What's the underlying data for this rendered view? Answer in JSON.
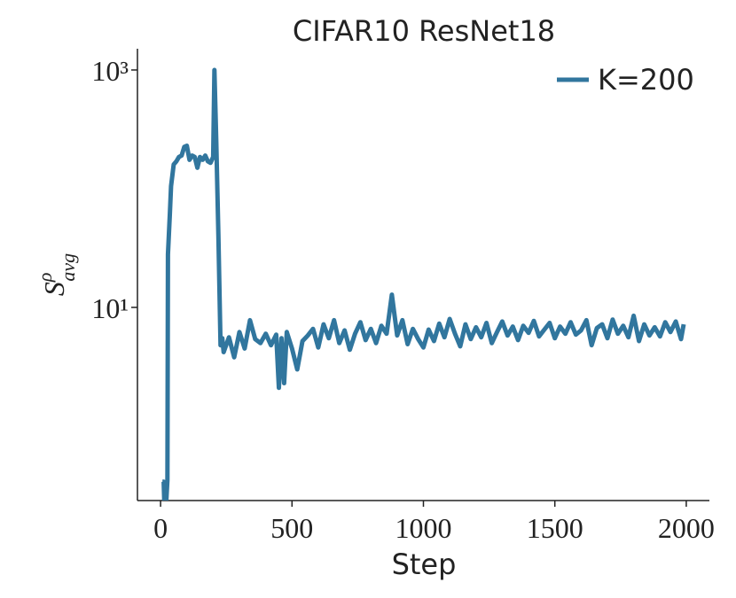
{
  "chart_data": {
    "type": "line",
    "title": "CIFAR10 ResNet18",
    "xlabel": "Step",
    "ylabel": {
      "base": "S",
      "sup": "ρ",
      "sub": "avg"
    },
    "log_y": true,
    "legend": "upper right",
    "grid": false,
    "xlim": [
      -88,
      2088
    ],
    "xticks": [
      0,
      500,
      1000,
      1500,
      2000
    ],
    "ylim": [
      0.236,
      1510
    ],
    "yticks": [
      {
        "value": 10,
        "label": "10¹"
      },
      {
        "value": 1000,
        "label": "10³"
      }
    ],
    "series": [
      {
        "name": "K=200",
        "color": "#31769e",
        "x": [
          7,
          12,
          14,
          22,
          26,
          28,
          35,
          40,
          50,
          60,
          70,
          80,
          90,
          100,
          110,
          120,
          130,
          140,
          150,
          160,
          170,
          180,
          190,
          200,
          205,
          212,
          220,
          228,
          235,
          240,
          260,
          280,
          300,
          320,
          340,
          360,
          380,
          400,
          420,
          440,
          450,
          460,
          470,
          480,
          500,
          520,
          540,
          560,
          580,
          600,
          620,
          640,
          660,
          680,
          700,
          720,
          740,
          760,
          780,
          800,
          820,
          840,
          860,
          880,
          900,
          920,
          940,
          960,
          980,
          1000,
          1020,
          1040,
          1060,
          1080,
          1100,
          1120,
          1140,
          1160,
          1180,
          1200,
          1220,
          1240,
          1260,
          1280,
          1300,
          1320,
          1340,
          1360,
          1380,
          1400,
          1420,
          1440,
          1460,
          1480,
          1500,
          1520,
          1540,
          1560,
          1580,
          1600,
          1620,
          1640,
          1660,
          1680,
          1700,
          1720,
          1740,
          1760,
          1780,
          1800,
          1820,
          1840,
          1860,
          1880,
          1900,
          1920,
          1940,
          1960,
          1980,
          1990
        ],
        "values": [
          0.34,
          0.34,
          0.24,
          0.24,
          0.35,
          28,
          60,
          105,
          160,
          170,
          185,
          190,
          225,
          230,
          175,
          190,
          185,
          150,
          185,
          175,
          190,
          170,
          165,
          185,
          1000,
          250,
          40,
          4.8,
          5.5,
          4.2,
          5.6,
          3.8,
          6.2,
          4.5,
          7.8,
          5.4,
          5.0,
          6.0,
          4.8,
          5.9,
          2.1,
          5.5,
          2.3,
          6.2,
          4.5,
          3.0,
          5.2,
          5.8,
          6.6,
          4.6,
          7.2,
          5.5,
          7.8,
          5.0,
          6.4,
          4.4,
          6.0,
          7.5,
          5.3,
          6.6,
          5.0,
          7.0,
          6.0,
          12.8,
          5.8,
          7.8,
          4.9,
          6.6,
          5.4,
          4.6,
          6.5,
          5.2,
          7.3,
          5.6,
          8.0,
          6.0,
          4.7,
          7.2,
          5.4,
          6.8,
          5.6,
          7.4,
          5.0,
          6.2,
          7.6,
          5.8,
          6.9,
          5.3,
          7.0,
          6.1,
          7.7,
          5.7,
          6.5,
          7.4,
          5.5,
          6.9,
          6.0,
          7.5,
          5.9,
          6.4,
          7.8,
          4.8,
          6.7,
          7.2,
          5.5,
          7.9,
          6.0,
          7.0,
          5.6,
          8.5,
          5.2,
          7.2,
          5.8,
          6.8,
          5.7,
          7.5,
          6.2,
          7.6,
          5.4,
          7.2
        ]
      }
    ]
  }
}
